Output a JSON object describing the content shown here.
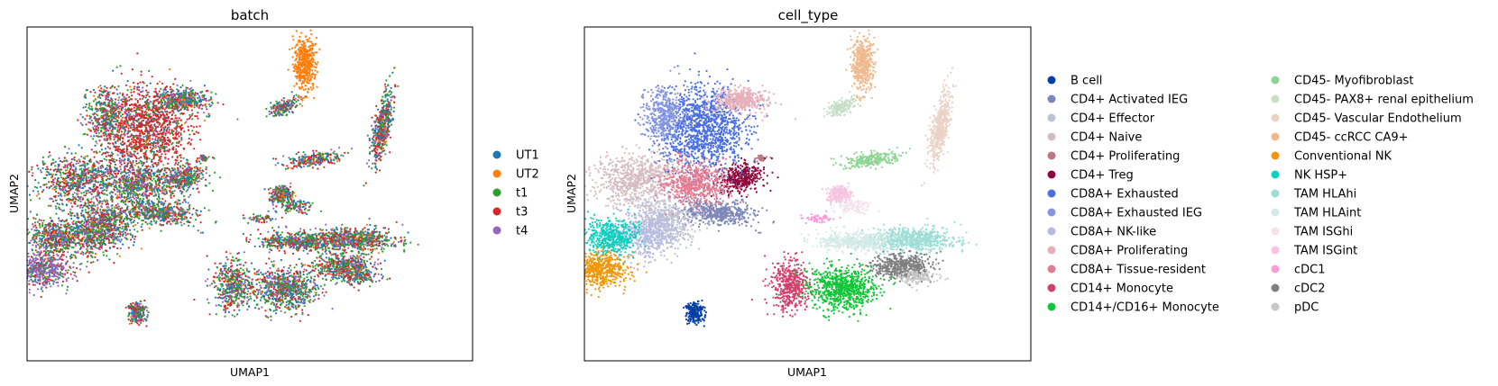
{
  "chart_data": [
    {
      "type": "scatter",
      "title": "batch",
      "xlabel": "UMAP1",
      "ylabel": "UMAP2",
      "xticks": [],
      "yticks": [],
      "grid": false,
      "legend_placement": "right",
      "series": [
        {
          "name": "UT1",
          "color": "#1f77b4"
        },
        {
          "name": "UT2",
          "color": "#ff7f0e"
        },
        {
          "name": "t1",
          "color": "#2ca02c"
        },
        {
          "name": "t3",
          "color": "#d62728"
        },
        {
          "name": "t4",
          "color": "#9467bd"
        }
      ]
    },
    {
      "type": "scatter",
      "title": "cell_type",
      "xlabel": "UMAP1",
      "ylabel": "UMAP2",
      "xticks": [],
      "yticks": [],
      "grid": false,
      "legend_placement": "right",
      "legend_columns": 2,
      "series": [
        {
          "name": "B cell",
          "color": "#023fa5"
        },
        {
          "name": "CD4+ Activated IEG",
          "color": "#7d87b9"
        },
        {
          "name": "CD4+ Effector",
          "color": "#bec1d4"
        },
        {
          "name": "CD4+ Naive",
          "color": "#d6bcc0"
        },
        {
          "name": "CD4+ Proliferating",
          "color": "#bb7784"
        },
        {
          "name": "CD4+ Treg",
          "color": "#8e063b"
        },
        {
          "name": "CD8A+ Exhausted",
          "color": "#4a6fe3"
        },
        {
          "name": "CD8A+ Exhausted IEG",
          "color": "#8595e1"
        },
        {
          "name": "CD8A+ NK-like",
          "color": "#b5bbe3"
        },
        {
          "name": "CD8A+ Proliferating",
          "color": "#e6afb9"
        },
        {
          "name": "CD8A+ Tissue-resident",
          "color": "#e07b91"
        },
        {
          "name": "CD14+ Monocyte",
          "color": "#d33f6a"
        },
        {
          "name": "CD14+/CD16+ Monocyte",
          "color": "#11c638"
        },
        {
          "name": "CD45- Myofibroblast",
          "color": "#8dd593"
        },
        {
          "name": "CD45- PAX8+ renal epithelium",
          "color": "#c6dec7"
        },
        {
          "name": "CD45- Vascular Endothelium",
          "color": "#ead3c6"
        },
        {
          "name": "CD45- ccRCC CA9+",
          "color": "#f0b98d"
        },
        {
          "name": "Conventional NK",
          "color": "#ef9708"
        },
        {
          "name": "NK HSP+",
          "color": "#0fcfc0"
        },
        {
          "name": "TAM HLAhi",
          "color": "#9cded6"
        },
        {
          "name": "TAM HLAint",
          "color": "#d5eae7"
        },
        {
          "name": "TAM ISGhi",
          "color": "#f3e1eb"
        },
        {
          "name": "TAM ISGint",
          "color": "#f6c4e1"
        },
        {
          "name": "cDC1",
          "color": "#f79cd4"
        },
        {
          "name": "cDC2",
          "color": "#7f7f7f"
        },
        {
          "name": "pDC",
          "color": "#c7c7c7"
        }
      ]
    }
  ]
}
